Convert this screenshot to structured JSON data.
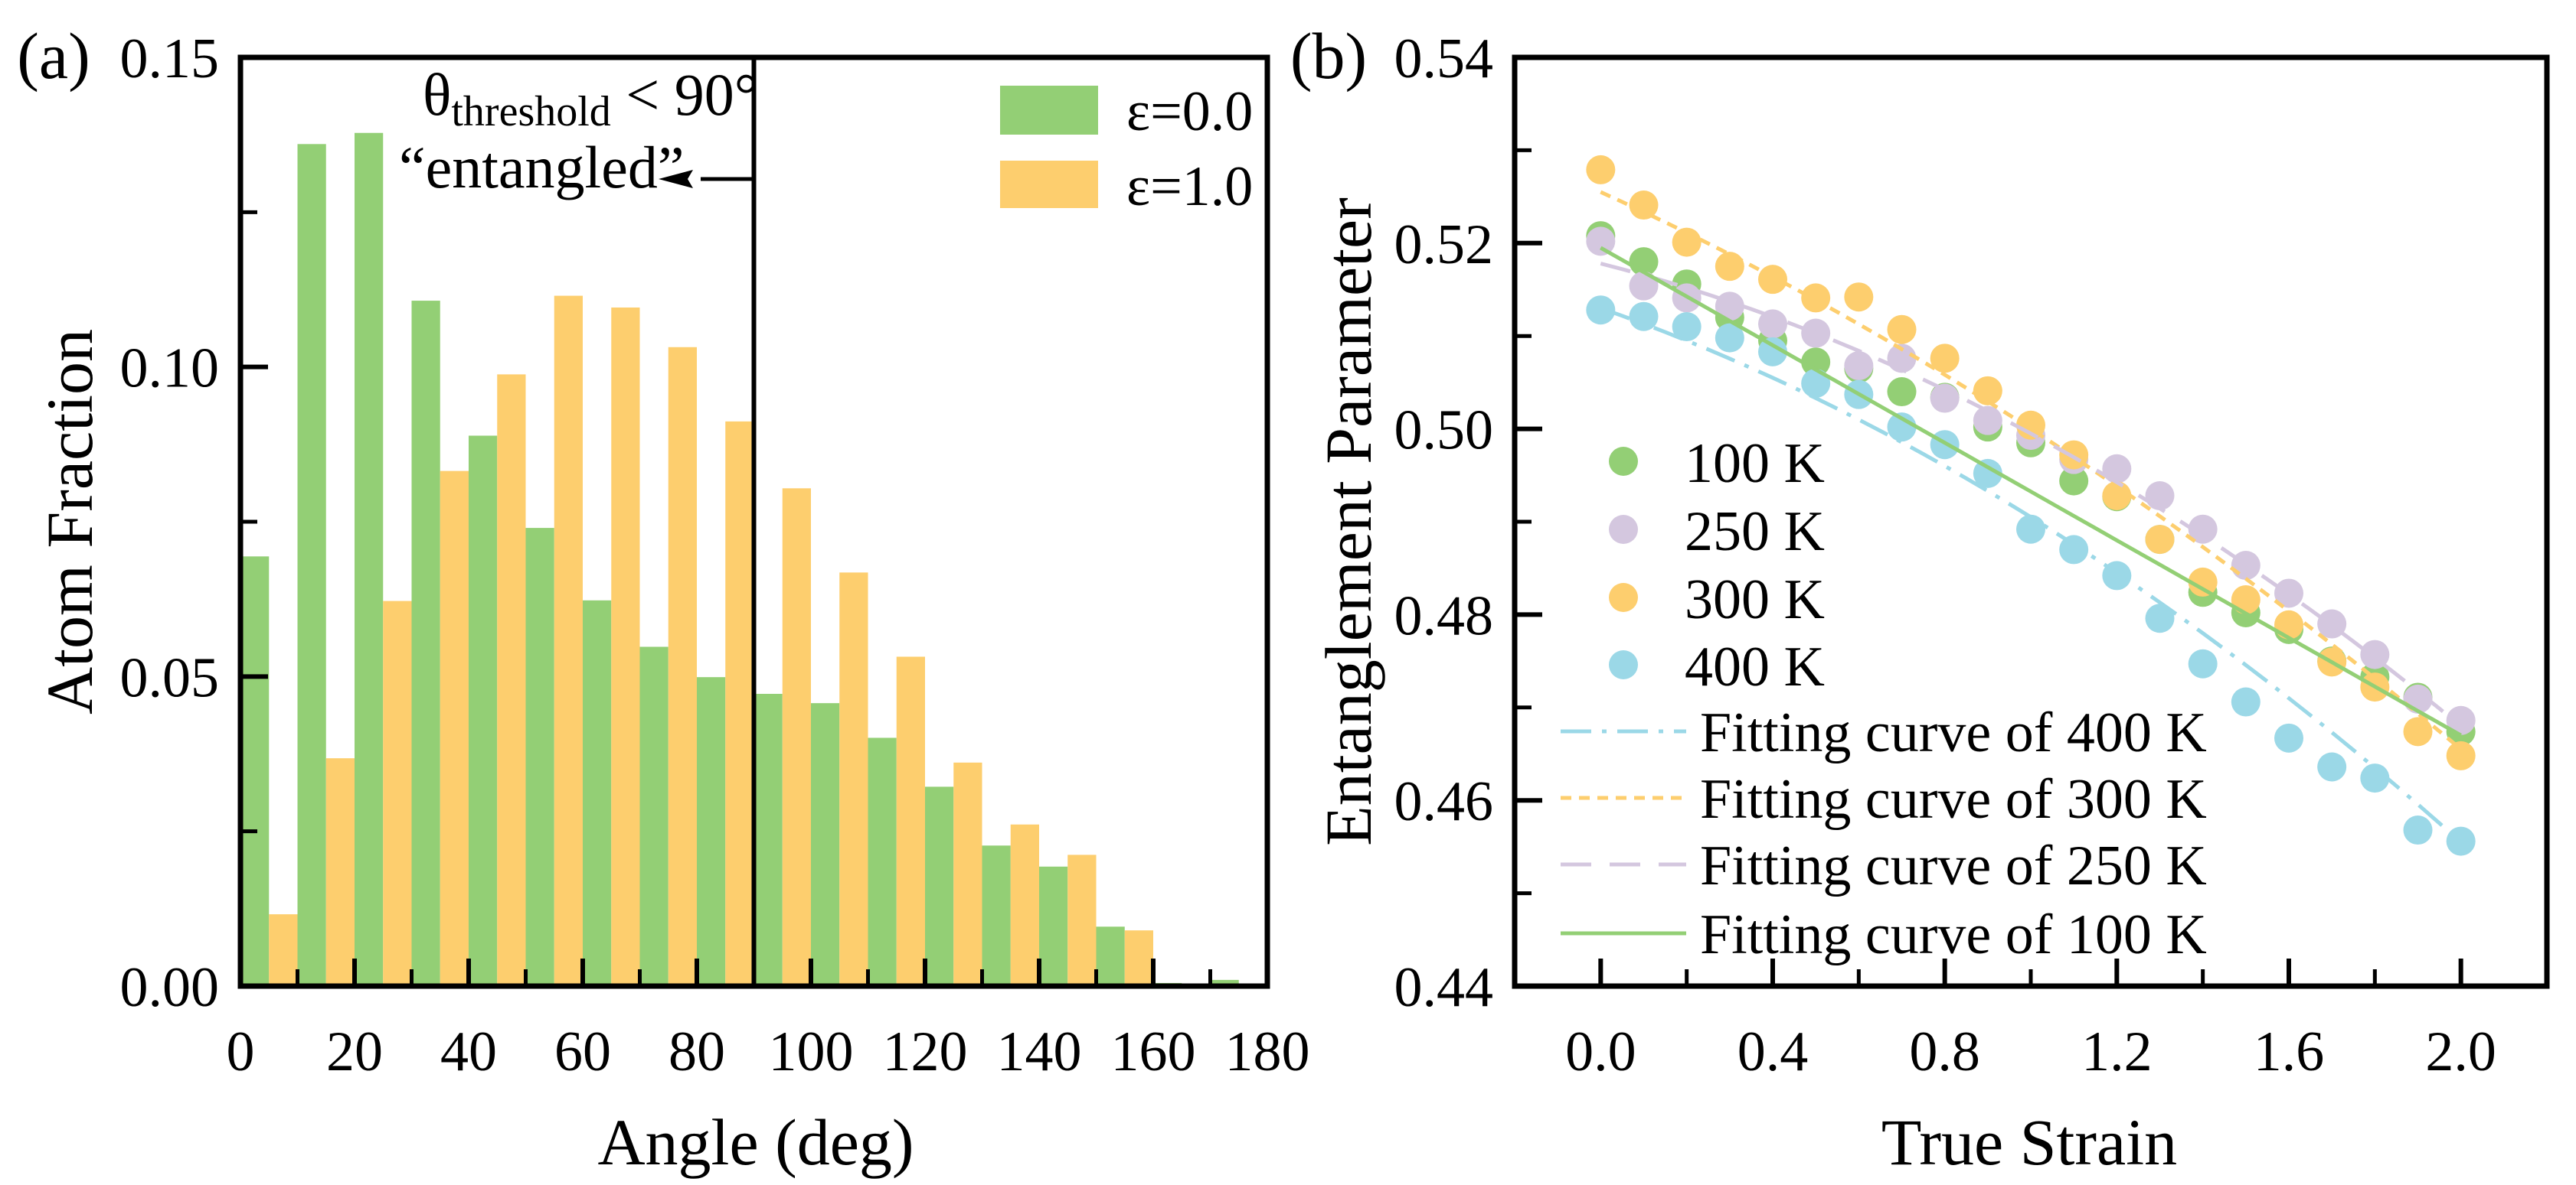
{
  "chart_data": [
    {
      "type": "bar",
      "panel_label": "(a)",
      "xlabel": "Angle (deg)",
      "ylabel": "Atom Fraction",
      "xlim": [
        0,
        180
      ],
      "ylim": [
        0,
        0.15
      ],
      "xticks": [
        0,
        20,
        40,
        60,
        80,
        100,
        120,
        140,
        160,
        180
      ],
      "xtick_labels": [
        "0",
        "20",
        "40",
        "60",
        "80",
        "100",
        "120",
        "140",
        "160",
        "180"
      ],
      "yticks": [
        0,
        0.05,
        0.1,
        0.15
      ],
      "ytick_labels": [
        "0.00",
        "0.05",
        "0.10",
        "0.15"
      ],
      "bin_width": 10,
      "categories": [
        0,
        10,
        20,
        30,
        40,
        50,
        60,
        70,
        80,
        90,
        100,
        110,
        120,
        130,
        140,
        150,
        160,
        170
      ],
      "series": [
        {
          "name": "ε=0.0",
          "color": "#93CF75",
          "values": [
            0.0694,
            0.136,
            0.1378,
            0.1107,
            0.0889,
            0.074,
            0.0623,
            0.0548,
            0.0499,
            0.0472,
            0.0457,
            0.0401,
            0.0322,
            0.0227,
            0.0193,
            0.0096,
            0.0005,
            0.001
          ]
        },
        {
          "name": "ε=1.0",
          "color": "#FDCE6E",
          "values": [
            0.0116,
            0.0368,
            0.0622,
            0.0832,
            0.0988,
            0.1115,
            0.1096,
            0.1032,
            0.0912,
            0.0804,
            0.0668,
            0.0532,
            0.0361,
            0.0261,
            0.0212,
            0.009,
            0.0004,
            0
          ]
        }
      ],
      "legend": "top-right",
      "annotation": {
        "threshold_value": 90,
        "theta": "θ",
        "subscript": "threshold",
        "condition": " < 90°",
        "label": "“entangled”"
      }
    },
    {
      "type": "scatter",
      "panel_label": "(b)",
      "xlabel": "True Strain",
      "ylabel": "Entanglement Parameter",
      "xlim": [
        -0.2,
        2.2
      ],
      "ylim": [
        0.44,
        0.54
      ],
      "xticks": [
        0.0,
        0.4,
        0.8,
        1.2,
        1.6,
        2.0
      ],
      "xtick_labels": [
        "0.0",
        "0.4",
        "0.8",
        "1.2",
        "1.6",
        "2.0"
      ],
      "yticks": [
        0.44,
        0.46,
        0.48,
        0.5,
        0.52,
        0.54
      ],
      "ytick_labels": [
        "0.44",
        "0.46",
        "0.48",
        "0.50",
        "0.52",
        "0.54"
      ],
      "x": [
        0,
        0.1,
        0.2,
        0.3,
        0.4,
        0.5,
        0.6,
        0.7,
        0.8,
        0.9,
        1.0,
        1.1,
        1.2,
        1.3,
        1.4,
        1.5,
        1.6,
        1.7,
        1.8,
        1.9,
        2.0
      ],
      "series": [
        {
          "name": "100 K",
          "color": "#93CF75",
          "values": [
            0.5208,
            0.518,
            0.5156,
            0.512,
            0.5095,
            0.5072,
            0.5065,
            0.504,
            0.5034,
            0.5002,
            0.4985,
            0.4944,
            0.4927,
            0.4881,
            0.4824,
            0.4802,
            0.4784,
            0.475,
            0.4733,
            0.4711,
            0.4674
          ]
        },
        {
          "name": "250 K",
          "color": "#D4C7DF",
          "values": [
            0.5202,
            0.5154,
            0.5141,
            0.5132,
            0.5113,
            0.5103,
            0.5068,
            0.5076,
            0.5033,
            0.5009,
            0.4993,
            0.4967,
            0.4957,
            0.4928,
            0.4892,
            0.4853,
            0.4823,
            0.479,
            0.4757,
            0.4709,
            0.4686
          ]
        },
        {
          "name": "300 K",
          "color": "#FDCE6E",
          "values": [
            0.5279,
            0.5241,
            0.5201,
            0.5175,
            0.5161,
            0.5141,
            0.5142,
            0.5107,
            0.5076,
            0.5041,
            0.5004,
            0.4972,
            0.4928,
            0.4881,
            0.4835,
            0.4816,
            0.4789,
            0.4749,
            0.4722,
            0.4674,
            0.4648
          ]
        },
        {
          "name": "400 K",
          "color": "#9BD8E7",
          "values": [
            0.5128,
            0.5121,
            0.511,
            0.5098,
            0.5083,
            0.5049,
            0.5037,
            0.5002,
            0.4983,
            0.4952,
            0.4892,
            0.487,
            0.4842,
            0.4796,
            0.4747,
            0.4706,
            0.4667,
            0.4636,
            0.4624,
            0.4568,
            0.4556
          ]
        }
      ],
      "fits": [
        {
          "name": "Fitting curve of 400 K",
          "color": "#9BD8E7",
          "style": "dash-dot",
          "coeffs": [
            0.513,
            -0.01625,
            -0.00625
          ]
        },
        {
          "name": "Fitting curve of 300 K",
          "color": "#FDCE6E",
          "style": "short-dash",
          "coeffs": [
            0.5255,
            -0.021,
            -0.0045
          ]
        },
        {
          "name": "Fitting curve of 250 K",
          "color": "#D4C7DF",
          "style": "dash",
          "coeffs": [
            0.5178,
            -0.0117,
            -0.0066
          ]
        },
        {
          "name": "Fitting curve of 100 K",
          "color": "#93CF75",
          "style": "solid",
          "coeffs": [
            0.5195,
            -0.02625,
            0
          ]
        }
      ],
      "legend": "center-left"
    }
  ]
}
